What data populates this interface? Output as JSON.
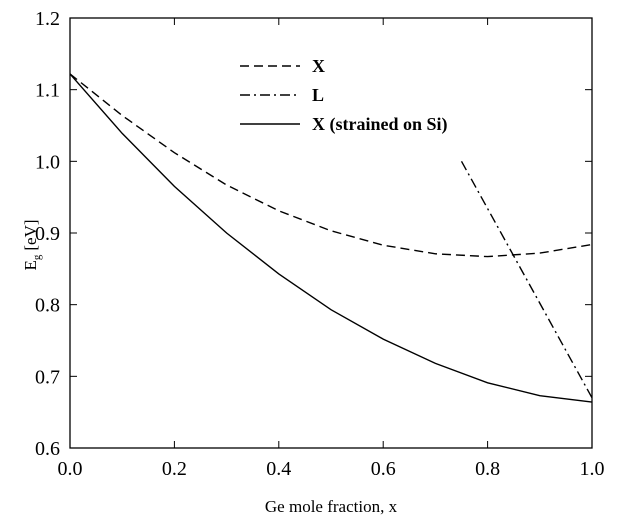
{
  "chart_data": {
    "type": "line",
    "xlabel": "Ge mole fraction, x",
    "ylabel_main": "E",
    "ylabel_sub": "g",
    "ylabel_unit": "[eV]",
    "xlim": [
      0.0,
      1.0
    ],
    "ylim": [
      0.6,
      1.2
    ],
    "xticks": [
      "0.0",
      "0.2",
      "0.4",
      "0.6",
      "0.8",
      "1.0"
    ],
    "yticks": [
      "0.6",
      "0.7",
      "0.8",
      "0.9",
      "1.0",
      "1.1",
      "1.2"
    ],
    "grid": false,
    "legend_position": "top-center",
    "series": [
      {
        "name": "X",
        "style": "dashed",
        "x": [
          0.0,
          0.1,
          0.2,
          0.3,
          0.4,
          0.5,
          0.6,
          0.7,
          0.8,
          0.9,
          1.0
        ],
        "y": [
          1.122,
          1.064,
          1.012,
          0.967,
          0.931,
          0.903,
          0.883,
          0.871,
          0.867,
          0.872,
          0.884
        ]
      },
      {
        "name": "L",
        "style": "dashdot",
        "x": [
          0.75,
          1.0
        ],
        "y": [
          1.0,
          0.67
        ]
      },
      {
        "name": "X (strained on Si)",
        "style": "solid",
        "x": [
          0.0,
          0.1,
          0.2,
          0.3,
          0.4,
          0.5,
          0.6,
          0.7,
          0.8,
          0.9,
          1.0
        ],
        "y": [
          1.122,
          1.039,
          0.965,
          0.9,
          0.843,
          0.793,
          0.752,
          0.718,
          0.691,
          0.673,
          0.664
        ]
      }
    ]
  }
}
